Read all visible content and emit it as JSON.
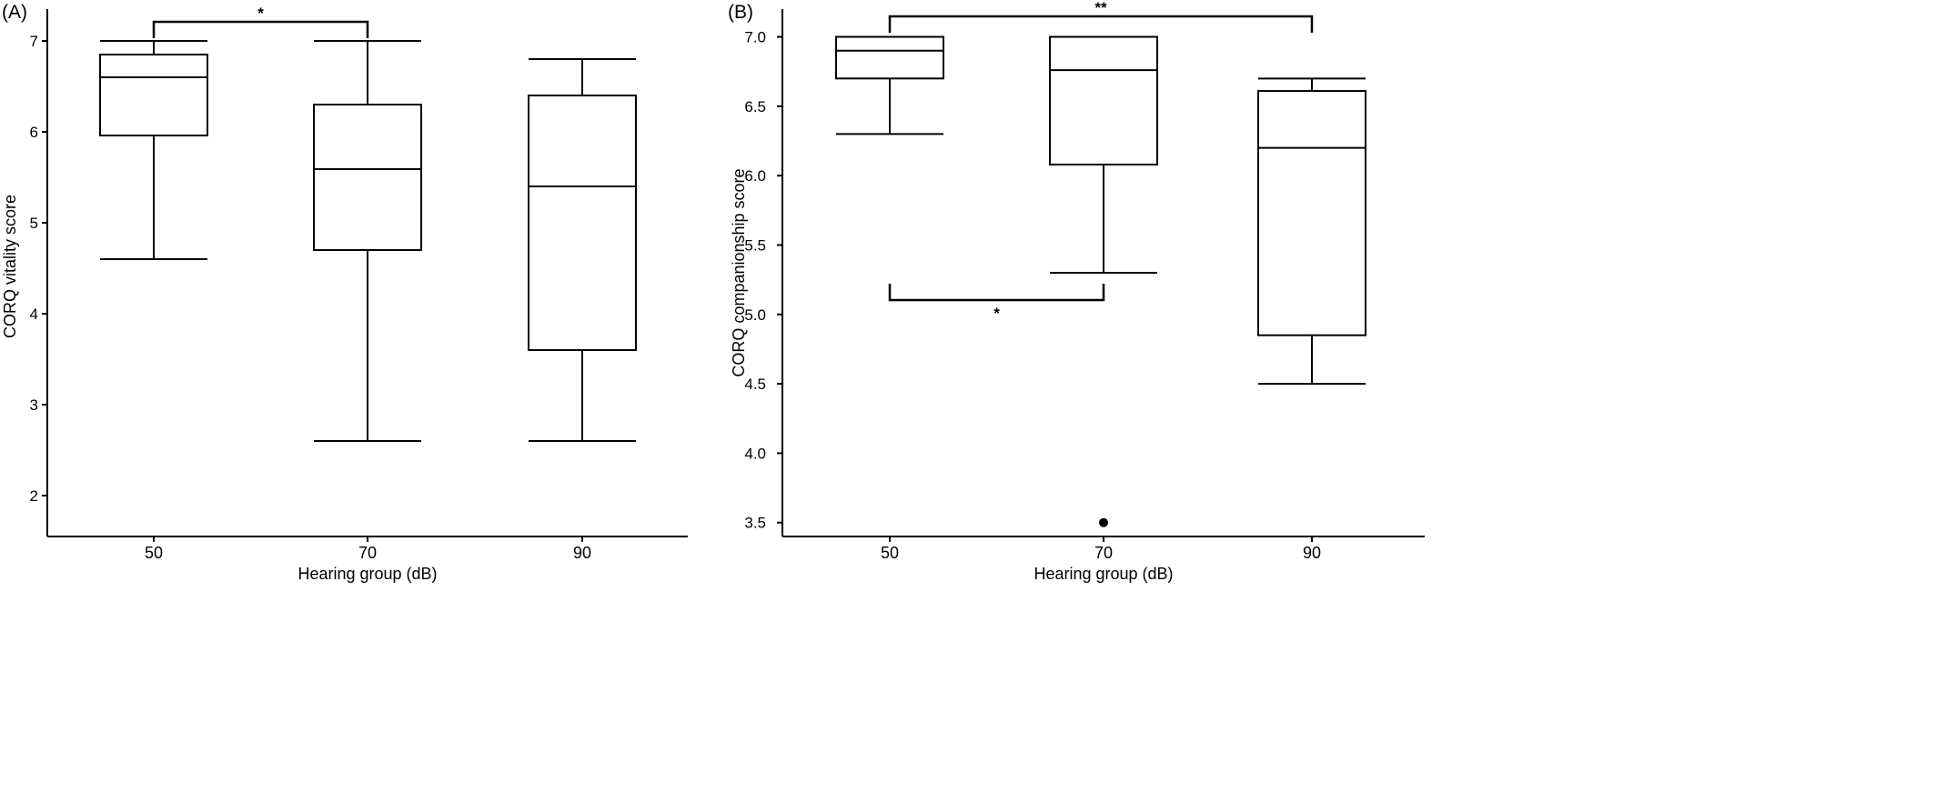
{
  "chart_data": [
    {
      "type": "box",
      "panel_label": "(A)",
      "xlabel": "Hearing group (dB)",
      "ylabel": "CORQ vitality score",
      "categories": [
        "50",
        "70",
        "90"
      ],
      "ylim": [
        1.55,
        7.35
      ],
      "yticks": [
        "2",
        "3",
        "4",
        "5",
        "6",
        "7"
      ],
      "boxes": [
        {
          "group": "50",
          "min": 4.6,
          "q1": 5.96,
          "median": 6.6,
          "q3": 6.85,
          "max": 7.0,
          "outliers": []
        },
        {
          "group": "70",
          "min": 2.6,
          "q1": 4.7,
          "median": 5.59,
          "q3": 6.3,
          "max": 7.0,
          "outliers": []
        },
        {
          "group": "90",
          "min": 2.6,
          "q1": 3.6,
          "median": 5.4,
          "q3": 6.4,
          "max": 6.8,
          "outliers": []
        }
      ],
      "significance": [
        {
          "from": "50",
          "to": "70",
          "label": "*",
          "position": "above"
        }
      ],
      "grid": false
    },
    {
      "type": "box",
      "panel_label": "(B)",
      "xlabel": "Hearing group (dB)",
      "ylabel": "CORQ companionship score",
      "categories": [
        "50",
        "70",
        "90"
      ],
      "ylim": [
        3.4,
        7.2
      ],
      "yticks": [
        "3.5",
        "4.0",
        "4.5",
        "5.0",
        "5.5",
        "6.0",
        "6.5",
        "7.0"
      ],
      "boxes": [
        {
          "group": "50",
          "min": 6.3,
          "q1": 6.7,
          "median": 6.9,
          "q3": 7.0,
          "max": 7.0,
          "outliers": []
        },
        {
          "group": "70",
          "min": 5.3,
          "q1": 6.08,
          "median": 6.76,
          "q3": 7.0,
          "max": 7.0,
          "outliers": [
            3.5
          ]
        },
        {
          "group": "90",
          "min": 4.5,
          "q1": 4.85,
          "median": 6.2,
          "q3": 6.61,
          "max": 6.7,
          "outliers": []
        }
      ],
      "significance": [
        {
          "from": "50",
          "to": "90",
          "label": "**",
          "position": "above"
        },
        {
          "from": "50",
          "to": "70",
          "label": "*",
          "position": "below"
        }
      ],
      "grid": false
    }
  ]
}
